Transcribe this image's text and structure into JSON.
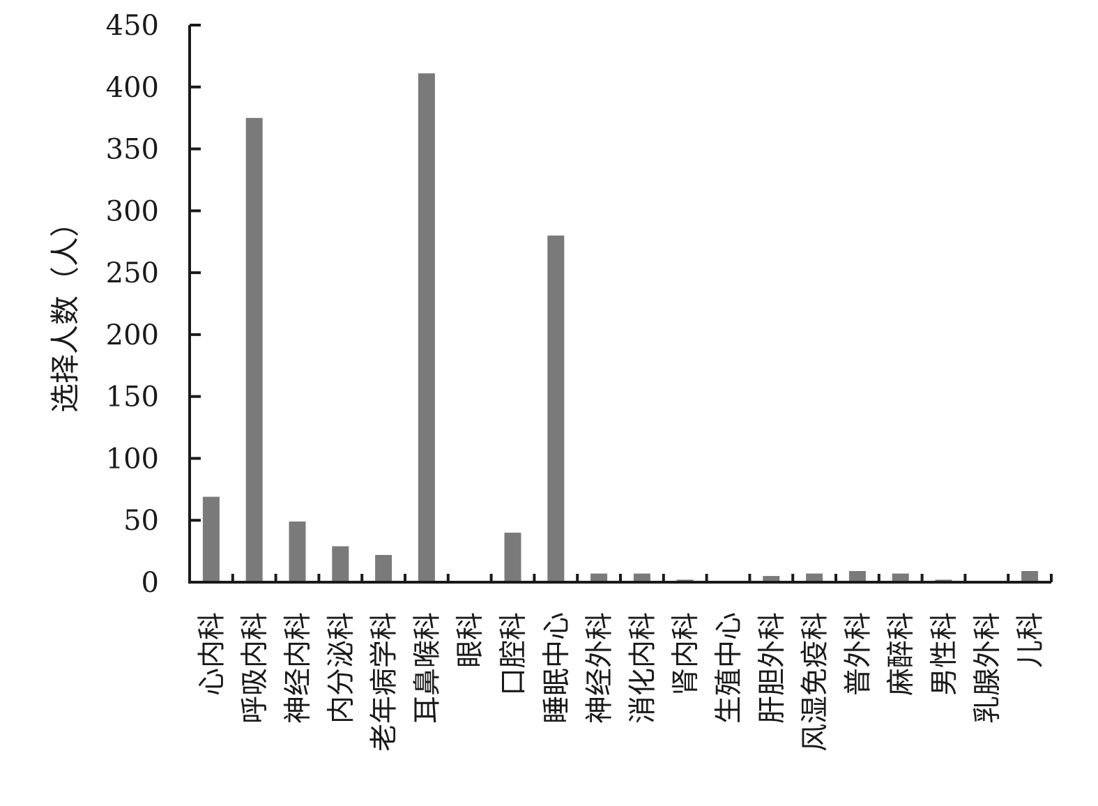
{
  "chart_data": {
    "type": "bar",
    "title": "",
    "xlabel": "",
    "ylabel": "选择人数（人）",
    "ylim": [
      0,
      450
    ],
    "yticks": [
      "0",
      "50",
      "100",
      "150",
      "200",
      "250",
      "300",
      "350",
      "400",
      "450"
    ],
    "ytick_values": [
      0,
      50,
      100,
      150,
      200,
      250,
      300,
      350,
      400,
      450
    ],
    "categories": [
      "心内科",
      "呼吸内科",
      "神经内科",
      "内分泌科",
      "老年病学科",
      "耳鼻喉科",
      "眼科",
      "口腔科",
      "睡眠中心",
      "神经外科",
      "消化内科",
      "肾内科",
      "生殖中心",
      "肝胆外科",
      "风湿免疫科",
      "普外科",
      "麻醉科",
      "男性科",
      "乳腺外科",
      "儿科"
    ],
    "values": [
      69,
      375,
      49,
      29,
      22,
      411,
      0,
      40,
      280,
      7,
      7,
      2,
      0,
      5,
      7,
      9,
      7,
      2,
      0,
      9
    ],
    "bar_color": "#7a7a7a",
    "axis_color": "#1a1a1a",
    "grid": false,
    "legend": "none"
  }
}
